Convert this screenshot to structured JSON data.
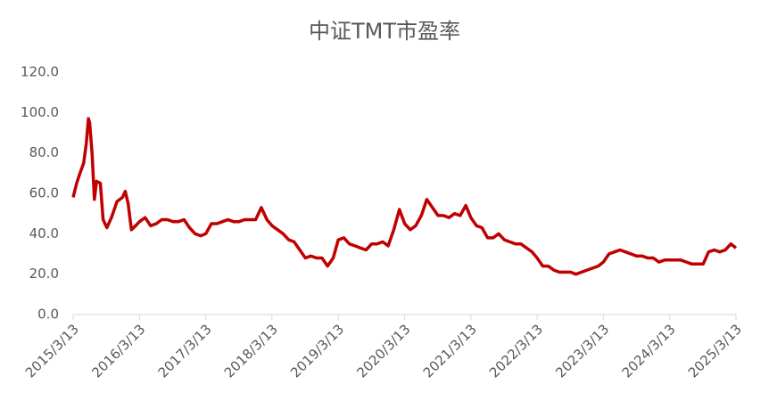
{
  "chart_data": {
    "type": "line",
    "title": "中证TMT市盈率",
    "x": [
      "2015/3/13",
      "2015/4/1",
      "2015/4/20",
      "2015/5/10",
      "2015/5/25",
      "2015/6/5",
      "2015/6/12",
      "2015/6/25",
      "2015/7/8",
      "2015/7/20",
      "2015/8/10",
      "2015/8/25",
      "2015/9/15",
      "2015/10/10",
      "2015/11/10",
      "2015/12/10",
      "2015/12/25",
      "2016/1/10",
      "2016/1/28",
      "2016/2/20",
      "2016/3/13",
      "2016/4/13",
      "2016/5/13",
      "2016/6/13",
      "2016/7/13",
      "2016/8/13",
      "2016/9/13",
      "2016/10/13",
      "2016/11/13",
      "2016/12/13",
      "2017/1/13",
      "2017/2/13",
      "2017/3/13",
      "2017/4/13",
      "2017/5/13",
      "2017/6/13",
      "2017/7/13",
      "2017/8/13",
      "2017/9/13",
      "2017/10/13",
      "2017/11/13",
      "2017/12/13",
      "2018/1/13",
      "2018/2/13",
      "2018/3/13",
      "2018/4/13",
      "2018/5/13",
      "2018/6/13",
      "2018/7/13",
      "2018/8/13",
      "2018/9/13",
      "2018/10/13",
      "2018/11/13",
      "2018/12/13",
      "2019/1/13",
      "2019/2/13",
      "2019/3/13",
      "2019/4/13",
      "2019/5/13",
      "2019/6/13",
      "2019/7/13",
      "2019/8/13",
      "2019/9/13",
      "2019/10/13",
      "2019/11/13",
      "2019/12/13",
      "2020/1/13",
      "2020/2/13",
      "2020/3/13",
      "2020/4/13",
      "2020/5/13",
      "2020/6/13",
      "2020/7/13",
      "2020/8/13",
      "2020/9/13",
      "2020/10/13",
      "2020/11/13",
      "2020/12/13",
      "2021/1/13",
      "2021/2/13",
      "2021/3/13",
      "2021/4/13",
      "2021/5/13",
      "2021/6/13",
      "2021/7/13",
      "2021/8/13",
      "2021/9/13",
      "2021/10/13",
      "2021/11/13",
      "2021/12/13",
      "2022/1/13",
      "2022/2/13",
      "2022/3/13",
      "2022/4/13",
      "2022/5/13",
      "2022/6/13",
      "2022/7/13",
      "2022/8/13",
      "2022/9/13",
      "2022/10/13",
      "2022/11/13",
      "2022/12/13",
      "2023/1/13",
      "2023/2/13",
      "2023/3/13",
      "2023/4/13",
      "2023/5/13",
      "2023/6/13",
      "2023/7/13",
      "2023/8/13",
      "2023/9/13",
      "2023/10/13",
      "2023/11/13",
      "2023/12/13",
      "2024/1/13",
      "2024/2/13",
      "2024/3/13",
      "2024/4/13",
      "2024/5/13",
      "2024/6/13",
      "2024/7/13",
      "2024/8/13",
      "2024/9/13",
      "2024/10/13",
      "2024/11/13",
      "2024/12/13",
      "2025/1/13",
      "2025/2/13",
      "2025/3/13"
    ],
    "values": [
      58,
      65,
      70,
      75,
      85,
      97,
      95,
      80,
      57,
      66,
      65,
      47,
      43,
      48,
      56,
      58,
      61,
      55,
      42,
      44,
      46,
      48,
      44,
      45,
      47,
      47,
      46,
      46,
      47,
      43,
      40,
      39,
      40,
      45,
      45,
      46,
      47,
      46,
      46,
      47,
      47,
      47,
      53,
      47,
      44,
      42,
      40,
      37,
      36,
      32,
      28,
      29,
      28,
      28,
      24,
      28,
      37,
      38,
      35,
      34,
      33,
      32,
      35,
      35,
      36,
      34,
      42,
      52,
      45,
      42,
      44,
      49,
      57,
      53,
      49,
      49,
      48,
      50,
      49,
      54,
      48,
      44,
      43,
      38,
      38,
      40,
      37,
      36,
      35,
      35,
      33,
      31,
      28,
      24,
      24,
      22,
      21,
      21,
      21,
      20,
      21,
      22,
      23,
      24,
      26,
      30,
      31,
      32,
      31,
      30,
      29,
      29,
      28,
      28,
      26,
      27,
      27,
      27,
      27,
      26,
      25,
      25,
      25,
      31,
      32,
      31,
      32,
      35,
      33
    ],
    "color": "#c00000",
    "xlim": [
      "2015/3/13",
      "2025/3/13"
    ],
    "xticks": [
      "2015/3/13",
      "2016/3/13",
      "2017/3/13",
      "2018/3/13",
      "2019/3/13",
      "2020/3/13",
      "2021/3/13",
      "2022/3/13",
      "2023/3/13",
      "2024/3/13",
      "2025/3/13"
    ],
    "ylim": [
      0,
      120
    ],
    "yticks": [
      {
        "value": 0,
        "label": "0.0"
      },
      {
        "value": 20,
        "label": "20.0"
      },
      {
        "value": 40,
        "label": "40.0"
      },
      {
        "value": 60,
        "label": "60.0"
      },
      {
        "value": 80,
        "label": "80.0"
      },
      {
        "value": 100,
        "label": "100.0"
      },
      {
        "value": 120,
        "label": "120.0"
      }
    ]
  }
}
